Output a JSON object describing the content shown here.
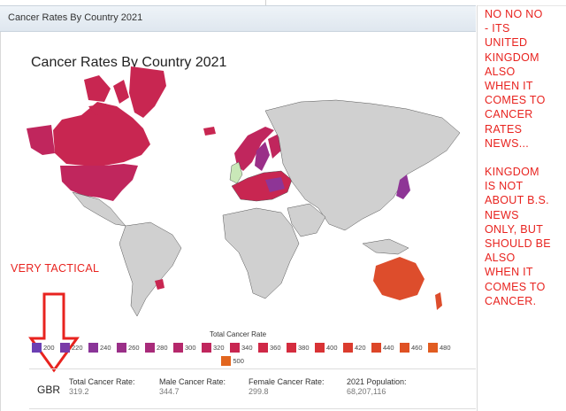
{
  "panel": {
    "title": "Cancer Rates By Country 2021"
  },
  "chart": {
    "title": "Cancer Rates By Country 2021"
  },
  "legend": {
    "title": "Total Cancer Rate",
    "items": [
      {
        "label": "200",
        "color": "#6b3fb3"
      },
      {
        "label": "220",
        "color": "#7a3aa8"
      },
      {
        "label": "240",
        "color": "#8a3598"
      },
      {
        "label": "260",
        "color": "#9a2f88"
      },
      {
        "label": "280",
        "color": "#a82b7a"
      },
      {
        "label": "300",
        "color": "#b5286b"
      },
      {
        "label": "320",
        "color": "#c0265d"
      },
      {
        "label": "340",
        "color": "#c82651"
      },
      {
        "label": "360",
        "color": "#cf2847"
      },
      {
        "label": "380",
        "color": "#d42c3e"
      },
      {
        "label": "400",
        "color": "#d83335"
      },
      {
        "label": "420",
        "color": "#db3c2e"
      },
      {
        "label": "440",
        "color": "#dd4628"
      },
      {
        "label": "460",
        "color": "#df5124"
      },
      {
        "label": "480",
        "color": "#e15c21"
      },
      {
        "label": "500",
        "color": "#e2661f"
      }
    ]
  },
  "country": {
    "code": "GBR",
    "stats": [
      {
        "label": "Total Cancer Rate:",
        "value": "319.2"
      },
      {
        "label": "Male Cancer Rate:",
        "value": "344.7"
      },
      {
        "label": "Female Cancer Rate:",
        "value": "299.8"
      },
      {
        "label": "2021 Population:",
        "value": "68,207,116"
      }
    ]
  },
  "annotations": {
    "side_lines_1": [
      "NO NO NO",
      "- ITS",
      "UNITED",
      "KINGDOM",
      "ALSO",
      "WHEN IT",
      "COMES TO",
      "CANCER",
      "RATES",
      "NEWS..."
    ],
    "side_lines_2": [
      "KINGDOM",
      "IS NOT",
      "ABOUT B.S.",
      "NEWS",
      "ONLY, BUT",
      "SHOULD BE",
      "ALSO",
      "WHEN IT",
      "COMES TO",
      "CANCER."
    ],
    "tactical": "VERY TACTICAL",
    "color": "#e8231f"
  },
  "map_colors": {
    "no_data": "#d0d0d0",
    "high": "#c2263e",
    "purple": "#8e3596",
    "orange": "#dd4d2c",
    "green": "#c9e8b8"
  }
}
